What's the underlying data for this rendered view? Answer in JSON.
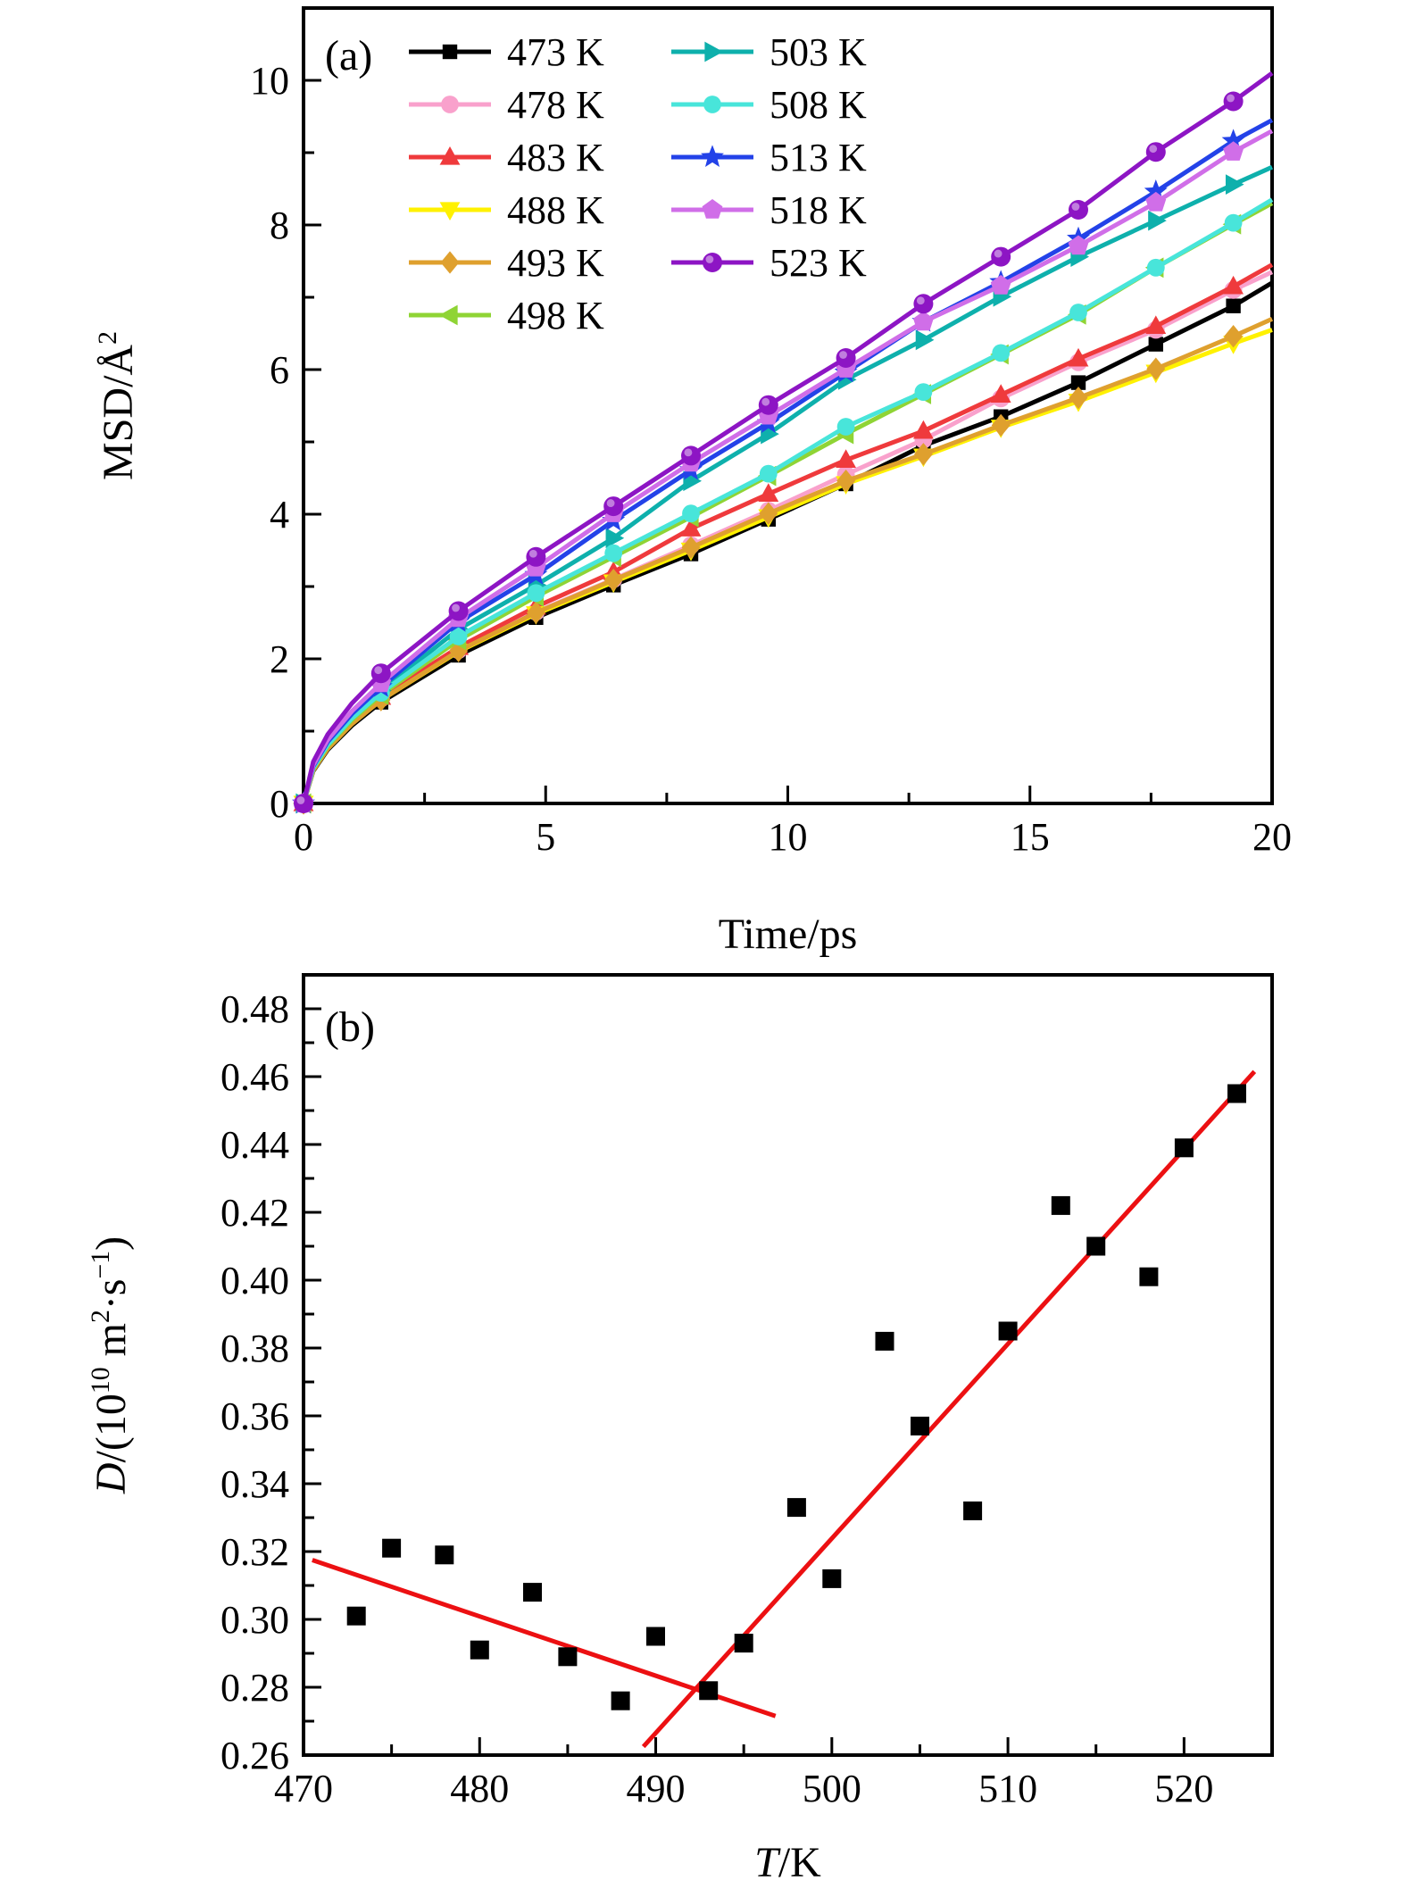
{
  "figure": {
    "background": "#ffffff",
    "text_color": "#000000",
    "panel_a_label": "(a)",
    "panel_b_label": "(b)"
  },
  "chart_data": [
    {
      "id": "panel-a",
      "type": "line",
      "panel_label": "(a)",
      "xlabel": "Time/ps",
      "ylabel": "MSD/Å²",
      "xlabel_parts": [
        {
          "t": "Time/ps"
        }
      ],
      "ylabel_parts": [
        {
          "t": "MSD/Å"
        },
        {
          "t": "2",
          "sup": true
        }
      ],
      "xlim": [
        0,
        20
      ],
      "ylim": [
        0,
        11
      ],
      "x_major_ticks": [
        0,
        5,
        10,
        15,
        20
      ],
      "x_minor_ticks": [
        2.5,
        7.5,
        12.5,
        17.5
      ],
      "y_major_ticks": [
        0,
        2,
        4,
        6,
        8,
        10
      ],
      "y_minor_ticks": [
        1,
        3,
        5,
        7,
        9,
        11
      ],
      "x_tick_decimals": 0,
      "y_tick_decimals": 0,
      "legend_position": "top-left, two columns, no frame",
      "grid": false,
      "x": [
        0,
        1.6,
        3.2,
        4.8,
        6.4,
        8.0,
        9.6,
        11.2,
        12.8,
        14.4,
        16.0,
        17.6,
        19.2,
        20
      ],
      "last_point_no_marker": true,
      "series": [
        {
          "name": "473 K",
          "color": "#000000",
          "marker": "square",
          "values": [
            0,
            1.4,
            2.05,
            2.57,
            3.02,
            3.45,
            3.93,
            4.42,
            4.95,
            5.35,
            5.82,
            6.35,
            6.88,
            7.2
          ]
        },
        {
          "name": "478 K",
          "color": "#F9A1CC",
          "marker": "circle",
          "values": [
            0,
            1.45,
            2.12,
            2.65,
            3.1,
            3.57,
            4.05,
            4.55,
            5.03,
            5.6,
            6.1,
            6.55,
            7.1,
            7.35
          ]
        },
        {
          "name": "483 K",
          "color": "#EF3A3C",
          "marker": "triangle-up",
          "values": [
            0,
            1.47,
            2.16,
            2.72,
            3.2,
            3.8,
            4.28,
            4.75,
            5.15,
            5.65,
            6.15,
            6.6,
            7.15,
            7.45
          ]
        },
        {
          "name": "488 K",
          "color": "#FFF100",
          "marker": "triangle-down",
          "values": [
            0,
            1.43,
            2.1,
            2.62,
            3.06,
            3.5,
            3.96,
            4.42,
            4.8,
            5.2,
            5.56,
            5.96,
            6.36,
            6.55
          ]
        },
        {
          "name": "493 K",
          "color": "#DFA02E",
          "marker": "diamond",
          "values": [
            0,
            1.43,
            2.11,
            2.64,
            3.09,
            3.54,
            4.01,
            4.46,
            4.83,
            5.23,
            5.61,
            6.01,
            6.46,
            6.7
          ]
        },
        {
          "name": "498 K",
          "color": "#8FD435",
          "marker": "triangle-left",
          "values": [
            0,
            1.5,
            2.26,
            2.86,
            3.41,
            3.96,
            4.53,
            5.11,
            5.66,
            6.21,
            6.76,
            7.41,
            8.01,
            8.3
          ]
        },
        {
          "name": "503 K",
          "color": "#0EB0AC",
          "marker": "triangle-right",
          "values": [
            0,
            1.56,
            2.41,
            3.02,
            3.67,
            4.46,
            5.11,
            5.86,
            6.41,
            7.01,
            7.56,
            8.06,
            8.56,
            8.8
          ]
        },
        {
          "name": "508 K",
          "color": "#48E5DA",
          "marker": "circle",
          "values": [
            0,
            1.53,
            2.31,
            2.91,
            3.46,
            4.01,
            4.56,
            5.21,
            5.69,
            6.23,
            6.79,
            7.41,
            8.03,
            8.35
          ]
        },
        {
          "name": "513 K",
          "color": "#2342E8",
          "marker": "star",
          "values": [
            0,
            1.61,
            2.51,
            3.16,
            3.91,
            4.61,
            5.26,
            5.96,
            6.66,
            7.21,
            7.81,
            8.46,
            9.16,
            9.45
          ]
        },
        {
          "name": "518 K",
          "color": "#D06EE8",
          "marker": "pentagon",
          "values": [
            0,
            1.66,
            2.56,
            3.26,
            4.01,
            4.71,
            5.36,
            6.01,
            6.66,
            7.16,
            7.71,
            8.31,
            9.01,
            9.3
          ]
        },
        {
          "name": "523 K",
          "color": "#8D15C4",
          "marker": "ball",
          "values": [
            0,
            1.8,
            2.66,
            3.41,
            4.11,
            4.81,
            5.51,
            6.16,
            6.91,
            7.56,
            8.21,
            9.01,
            9.71,
            10.1
          ]
        }
      ]
    },
    {
      "id": "panel-b",
      "type": "scatter",
      "panel_label": "(b)",
      "xlabel": "T/K",
      "ylabel": "D/(10¹⁰ m²·s⁻¹)",
      "xlabel_parts": [
        {
          "t": "T",
          "italic": true
        },
        {
          "t": "/K"
        }
      ],
      "ylabel_parts": [
        {
          "t": "D",
          "italic": true
        },
        {
          "t": "/(10"
        },
        {
          "t": "10",
          "sup": true
        },
        {
          "t": " m"
        },
        {
          "t": "2",
          "sup": true
        },
        {
          "t": "·s"
        },
        {
          "t": "−1",
          "sup": true
        },
        {
          "t": ")"
        }
      ],
      "xlim": [
        470,
        525
      ],
      "ylim": [
        0.26,
        0.49
      ],
      "x_major_ticks": [
        470,
        480,
        490,
        500,
        510,
        520
      ],
      "x_minor_ticks": [
        475,
        485,
        495,
        505,
        515,
        525
      ],
      "y_major_ticks": [
        0.26,
        0.28,
        0.3,
        0.32,
        0.34,
        0.36,
        0.38,
        0.4,
        0.42,
        0.44,
        0.46,
        0.48
      ],
      "y_minor_ticks": [
        0.27,
        0.29,
        0.31,
        0.33,
        0.35,
        0.37,
        0.39,
        0.41,
        0.43,
        0.45,
        0.47,
        0.49
      ],
      "x_tick_decimals": 0,
      "y_tick_decimals": 2,
      "grid": false,
      "marker": {
        "shape": "square",
        "color": "#000000",
        "size": 21
      },
      "points": [
        [
          473,
          0.301
        ],
        [
          475,
          0.321
        ],
        [
          478,
          0.319
        ],
        [
          480,
          0.291
        ],
        [
          483,
          0.308
        ],
        [
          485,
          0.289
        ],
        [
          488,
          0.276
        ],
        [
          490,
          0.295
        ],
        [
          493,
          0.279
        ],
        [
          495,
          0.293
        ],
        [
          498,
          0.333
        ],
        [
          500,
          0.312
        ],
        [
          503,
          0.382
        ],
        [
          505,
          0.357
        ],
        [
          508,
          0.332
        ],
        [
          510,
          0.385
        ],
        [
          513,
          0.422
        ],
        [
          515,
          0.41
        ],
        [
          518,
          0.401
        ],
        [
          520,
          0.439
        ],
        [
          523,
          0.455
        ]
      ],
      "fit_lines": [
        {
          "x1": 470.5,
          "y1": 0.3175,
          "x2": 496.8,
          "y2": 0.2715,
          "color": "#EC1012"
        },
        {
          "x1": 489.3,
          "y1": 0.2625,
          "x2": 524.0,
          "y2": 0.4615,
          "color": "#EC1012"
        }
      ]
    }
  ]
}
